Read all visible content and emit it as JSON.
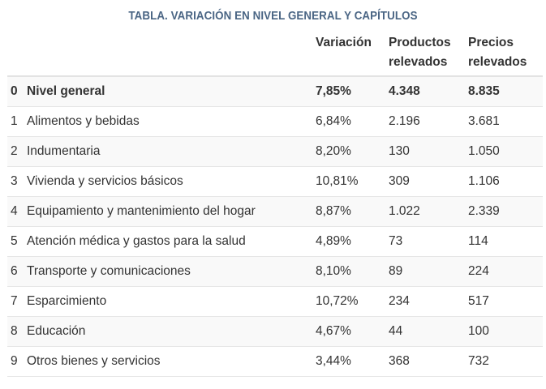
{
  "title": "TABLA. VARIACIÓN EN NIVEL GENERAL Y CAPÍTULOS",
  "columns": {
    "variacion": "Variación",
    "productos": "Productos relevados",
    "precios": "Precios relevados"
  },
  "rows": [
    {
      "idx": "0",
      "name": "Nivel general",
      "variacion": "7,85%",
      "productos": "4.348",
      "precios": "8.835"
    },
    {
      "idx": "1",
      "name": "Alimentos y bebidas",
      "variacion": "6,84%",
      "productos": "2.196",
      "precios": "3.681"
    },
    {
      "idx": "2",
      "name": "Indumentaria",
      "variacion": "8,20%",
      "productos": "130",
      "precios": "1.050"
    },
    {
      "idx": "3",
      "name": "Vivienda y servicios básicos",
      "variacion": "10,81%",
      "productos": "309",
      "precios": "1.106"
    },
    {
      "idx": "4",
      "name": "Equipamiento y mantenimiento del hogar",
      "variacion": "8,87%",
      "productos": "1.022",
      "precios": "2.339"
    },
    {
      "idx": "5",
      "name": "Atención médica y gastos para la salud",
      "variacion": "4,89%",
      "productos": "73",
      "precios": "114"
    },
    {
      "idx": "6",
      "name": "Transporte y comunicaciones",
      "variacion": "8,10%",
      "productos": "89",
      "precios": "224"
    },
    {
      "idx": "7",
      "name": "Esparcimiento",
      "variacion": "10,72%",
      "productos": "234",
      "precios": "517"
    },
    {
      "idx": "8",
      "name": "Educación",
      "variacion": "4,67%",
      "productos": "44",
      "precios": "100"
    },
    {
      "idx": "9",
      "name": "Otros bienes y servicios",
      "variacion": "3,44%",
      "productos": "368",
      "precios": "732"
    }
  ]
}
